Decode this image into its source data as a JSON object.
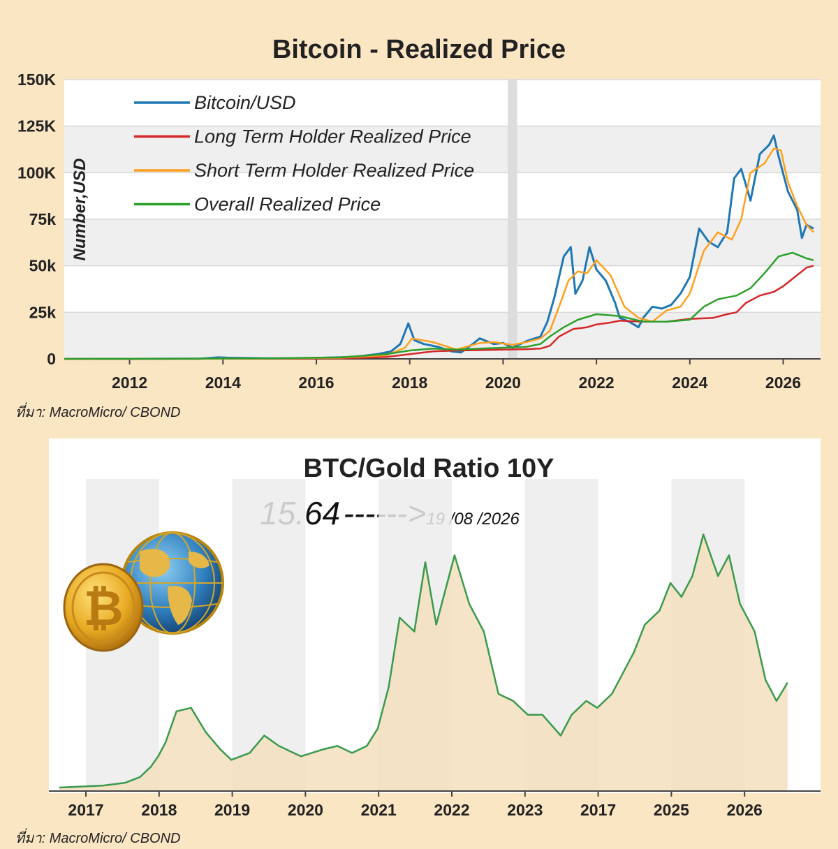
{
  "chart_data": [
    {
      "type": "line",
      "title": "Bitcoin - Realized Price",
      "ylabel": "Number,USD",
      "source": "ที่มา: MacroMicro/ CBOND",
      "ylim": [
        0,
        150000
      ],
      "xlim": [
        2010.6,
        2026.8
      ],
      "yticks": [
        0,
        25000,
        50000,
        75000,
        100000,
        125000,
        150000
      ],
      "ytick_labels": [
        "0",
        "25k",
        "50k",
        "75k",
        "100K",
        "125K",
        "150K"
      ],
      "xticks": [
        2012,
        2014,
        2016,
        2018,
        2020,
        2022,
        2024,
        2026
      ],
      "xtick_labels": [
        "2012",
        "2014",
        "2016",
        "2018",
        "2020",
        "2022",
        "2024",
        "2026"
      ],
      "grid": true,
      "legend_position": "top-left",
      "shaded_band": [
        2020.1,
        2020.3
      ],
      "series": [
        {
          "name": "Bitcoin/USD",
          "color": "#1f77b4",
          "x": [
            2010.6,
            2012,
            2013.5,
            2013.9,
            2014.1,
            2015,
            2016,
            2016.8,
            2017.3,
            2017.6,
            2017.8,
            2017.97,
            2018.1,
            2018.3,
            2018.6,
            2018.9,
            2019.1,
            2019.35,
            2019.5,
            2019.8,
            2020.0,
            2020.2,
            2020.5,
            2020.8,
            2020.95,
            2021.1,
            2021.3,
            2021.45,
            2021.55,
            2021.7,
            2021.85,
            2022.0,
            2022.2,
            2022.4,
            2022.5,
            2022.7,
            2022.9,
            2023.0,
            2023.2,
            2023.4,
            2023.6,
            2023.8,
            2024.0,
            2024.2,
            2024.4,
            2024.6,
            2024.8,
            2024.95,
            2025.1,
            2025.3,
            2025.5,
            2025.7,
            2025.8,
            2025.9,
            2026.1,
            2026.3,
            2026.4,
            2026.5,
            2026.65
          ],
          "y": [
            0,
            10,
            120,
            800,
            600,
            250,
            500,
            1000,
            2500,
            4000,
            8000,
            19000,
            10000,
            8000,
            6500,
            4000,
            3500,
            8000,
            11000,
            8000,
            8500,
            6000,
            9500,
            12000,
            20000,
            33000,
            55000,
            60000,
            35000,
            42000,
            60000,
            48000,
            42000,
            30000,
            22000,
            20000,
            17000,
            22000,
            28000,
            27000,
            29000,
            35000,
            44000,
            70000,
            63000,
            60000,
            68000,
            97000,
            102000,
            85000,
            110000,
            115000,
            120000,
            109000,
            90000,
            80000,
            65000,
            72000,
            70000
          ]
        },
        {
          "name": "Long Term Holder Realized Price",
          "color": "#d62728",
          "x": [
            2010.6,
            2013,
            2015,
            2016.5,
            2017.5,
            2018,
            2018.5,
            2019,
            2019.5,
            2020,
            2020.5,
            2020.8,
            2021,
            2021.2,
            2021.5,
            2021.8,
            2022,
            2022.3,
            2022.5,
            2023,
            2023.5,
            2024,
            2024.5,
            2024.8,
            2025,
            2025.2,
            2025.5,
            2025.8,
            2026,
            2026.3,
            2026.5,
            2026.65
          ],
          "y": [
            0,
            50,
            150,
            300,
            1000,
            2500,
            4000,
            4500,
            4700,
            5000,
            5200,
            5500,
            7000,
            12000,
            16000,
            17000,
            18500,
            19500,
            20500,
            20000,
            20000,
            21500,
            22000,
            24000,
            25000,
            30000,
            34000,
            36000,
            39000,
            45000,
            49000,
            50000
          ]
        },
        {
          "name": "Short Term Holder Realized Price",
          "color": "#ff9f1c",
          "x": [
            2010.6,
            2013,
            2015,
            2016.5,
            2017.5,
            2017.9,
            2018.05,
            2018.5,
            2019,
            2019.5,
            2019.8,
            2020.2,
            2020.5,
            2020.8,
            2021.0,
            2021.2,
            2021.4,
            2021.6,
            2021.8,
            2022.0,
            2022.3,
            2022.6,
            2022.9,
            2023.2,
            2023.5,
            2023.8,
            2024.0,
            2024.3,
            2024.6,
            2024.9,
            2025.1,
            2025.3,
            2025.6,
            2025.8,
            2025.95,
            2026.1,
            2026.3,
            2026.5,
            2026.65
          ],
          "y": [
            0,
            80,
            250,
            600,
            2000,
            6000,
            11000,
            9000,
            5000,
            8500,
            9000,
            7500,
            9000,
            11000,
            15000,
            28000,
            42000,
            47000,
            46000,
            53000,
            45000,
            28000,
            22000,
            20000,
            26000,
            28000,
            35000,
            58000,
            68000,
            64000,
            75000,
            100000,
            105000,
            113000,
            112000,
            95000,
            82000,
            72000,
            68000
          ]
        },
        {
          "name": "Overall Realized Price",
          "color": "#2ca02c",
          "x": [
            2010.6,
            2013,
            2015,
            2016.5,
            2017.5,
            2018,
            2018.5,
            2019,
            2019.5,
            2020,
            2020.5,
            2020.8,
            2021,
            2021.3,
            2021.6,
            2022,
            2022.5,
            2023,
            2023.5,
            2024,
            2024.3,
            2024.6,
            2025,
            2025.3,
            2025.6,
            2025.9,
            2026.2,
            2026.5,
            2026.65
          ],
          "y": [
            0,
            100,
            300,
            800,
            2500,
            4500,
            5500,
            5000,
            5500,
            6000,
            6500,
            8000,
            12000,
            17000,
            21000,
            24000,
            23000,
            20000,
            20000,
            21000,
            28000,
            32000,
            34000,
            38000,
            46000,
            55000,
            57000,
            54000,
            53000
          ]
        }
      ]
    },
    {
      "type": "area",
      "title": "BTC/Gold Ratio 10Y",
      "annotation_value": "15.64",
      "annotation_arrow": "------>",
      "annotation_date": "19 /08 /2026",
      "source": "ที่มา: MacroMicro/ CBOND",
      "ylim": [
        0,
        45
      ],
      "categories": [
        "2017",
        "2018",
        "2019",
        "2020",
        "2021",
        "2022",
        "2023",
        "2017",
        "2025",
        "2026"
      ],
      "shaded_periods": [
        1,
        3,
        5,
        7,
        9
      ],
      "series": [
        {
          "name": "",
          "color": "#3a9a4d",
          "fill": "#f3dfbd",
          "x": [
            0.0,
            0.6,
            0.9,
            1.1,
            1.25,
            1.35,
            1.45,
            1.6,
            1.8,
            2.0,
            2.2,
            2.35,
            2.6,
            2.8,
            3.0,
            3.3,
            3.6,
            3.8,
            4.0,
            4.2,
            4.35,
            4.5,
            4.65,
            4.85,
            5.0,
            5.15,
            5.4,
            5.6,
            5.8,
            6.0,
            6.2,
            6.4,
            6.6,
            6.85,
            7.0,
            7.2,
            7.35,
            7.55,
            7.7,
            7.85,
            8.0,
            8.2,
            8.35,
            8.5,
            8.65,
            8.8,
            9.0,
            9.15,
            9.3,
            9.5,
            9.65,
            9.8,
            9.95
          ],
          "y": [
            0.5,
            0.8,
            1.2,
            2.0,
            3.5,
            5.0,
            7.0,
            11.5,
            12.0,
            8.5,
            6.0,
            4.5,
            5.5,
            8.0,
            6.5,
            5.0,
            6.0,
            6.5,
            5.5,
            6.5,
            9.0,
            15.0,
            25.0,
            23.0,
            33.0,
            24.0,
            34.0,
            27.0,
            23.0,
            14.0,
            13.0,
            11.0,
            11.0,
            8.0,
            11.0,
            13.0,
            12.0,
            14.0,
            17.0,
            20.0,
            24.0,
            26.0,
            30.0,
            28.0,
            31.0,
            37.0,
            31.0,
            34.0,
            27.0,
            23.0,
            16.0,
            13.0,
            15.64
          ]
        }
      ]
    }
  ]
}
